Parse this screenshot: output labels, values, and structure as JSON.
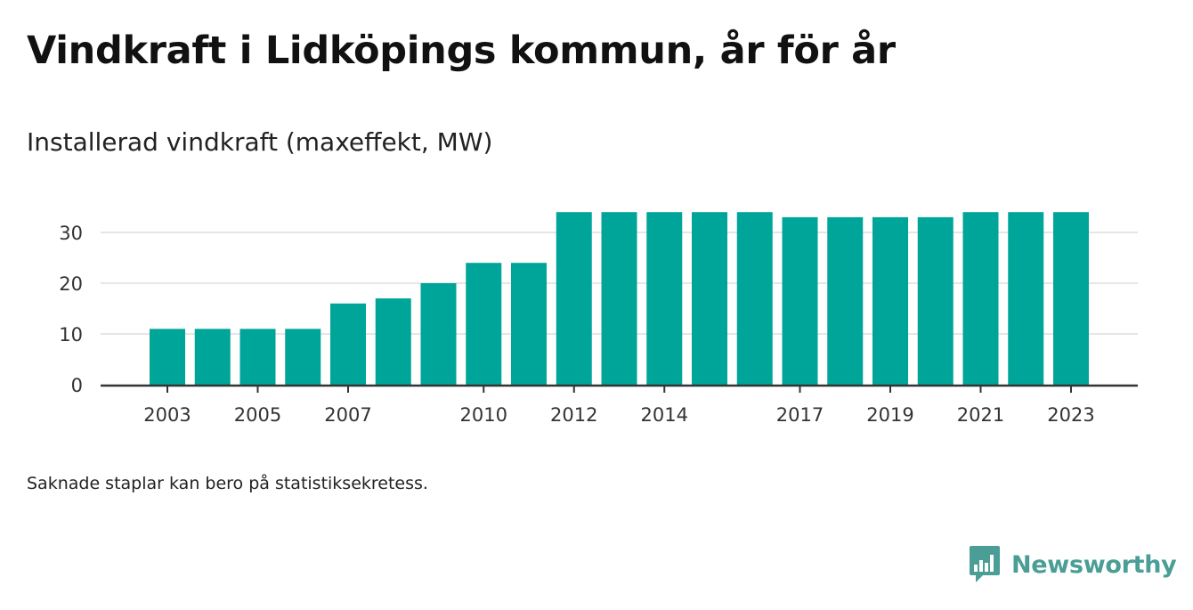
{
  "title": "Vindkraft i Lidköpings kommun, år för år",
  "subtitle": "Installerad vindkraft (maxeffekt, MW)",
  "note": "Saknade staplar kan bero på statistiksekretess.",
  "brand": {
    "name": "Newsworthy",
    "icon": "newsworthy-logo-icon"
  },
  "colors": {
    "bar": "#00a599",
    "grid": "#dddddd",
    "axis": "#333333",
    "brand": "#4a9e96"
  },
  "chart_data": {
    "type": "bar",
    "x": [
      2003,
      2004,
      2005,
      2006,
      2007,
      2008,
      2009,
      2010,
      2011,
      2012,
      2013,
      2014,
      2015,
      2016,
      2017,
      2018,
      2019,
      2020,
      2021,
      2022,
      2023
    ],
    "values": [
      11,
      11,
      11,
      11,
      16,
      17,
      20,
      24,
      24,
      34,
      34,
      34,
      34,
      34,
      33,
      33,
      33,
      33,
      34,
      34,
      34
    ],
    "x_tick_labels": [
      "2003",
      "2005",
      "2007",
      "2010",
      "2012",
      "2014",
      "2017",
      "2019",
      "2021",
      "2023"
    ],
    "y_ticks": [
      0,
      10,
      20,
      30
    ],
    "ylim": [
      0,
      34
    ],
    "xlabel": "",
    "ylabel": "",
    "grid": true,
    "legend": "none"
  }
}
